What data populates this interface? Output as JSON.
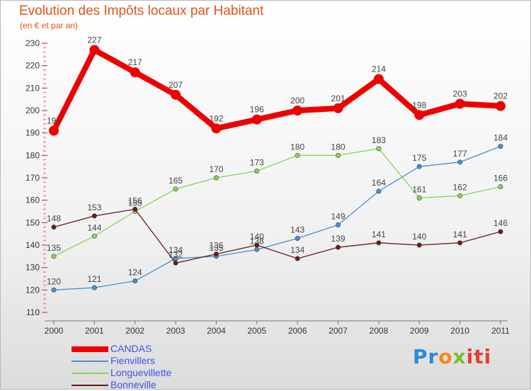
{
  "header": {
    "title": "Evolution des Impôts locaux par Habitant",
    "subtitle": "(en € et par an)"
  },
  "logo": {
    "text": "Proxiti",
    "parts": [
      "Pr",
      "o",
      "x",
      "iti"
    ]
  },
  "chart_data": {
    "type": "line",
    "title": "Evolution des Impôts locaux par Habitant",
    "subtitle": "(en € et par an)",
    "xlabel": "",
    "ylabel": "",
    "categories": [
      "2000",
      "2001",
      "2002",
      "2003",
      "2004",
      "2005",
      "2006",
      "2007",
      "2008",
      "2009",
      "2010",
      "2011"
    ],
    "ylim": [
      110,
      230
    ],
    "yticks": [
      110,
      120,
      130,
      140,
      150,
      160,
      170,
      180,
      190,
      200,
      210,
      220,
      230
    ],
    "grid": false,
    "legend_position": "bottom-left",
    "series": [
      {
        "name": "CANDAS",
        "color": "#ee0000",
        "emphasis": true,
        "values": [
          191,
          227,
          217,
          207,
          192,
          196,
          200,
          201,
          214,
          198,
          203,
          202
        ]
      },
      {
        "name": "Fienvillers",
        "color": "#4a8fd0",
        "emphasis": false,
        "values": [
          120,
          121,
          124,
          134,
          135,
          138,
          143,
          149,
          164,
          175,
          177,
          184
        ]
      },
      {
        "name": "Longuevillette",
        "color": "#88d45a",
        "emphasis": false,
        "values": [
          135,
          144,
          155,
          165,
          170,
          173,
          180,
          180,
          183,
          161,
          162,
          166
        ]
      },
      {
        "name": "Bonneville",
        "color": "#6b1a1a",
        "emphasis": false,
        "values": [
          148,
          153,
          156,
          132,
          136,
          140,
          134,
          139,
          141,
          140,
          141,
          146
        ]
      }
    ]
  }
}
